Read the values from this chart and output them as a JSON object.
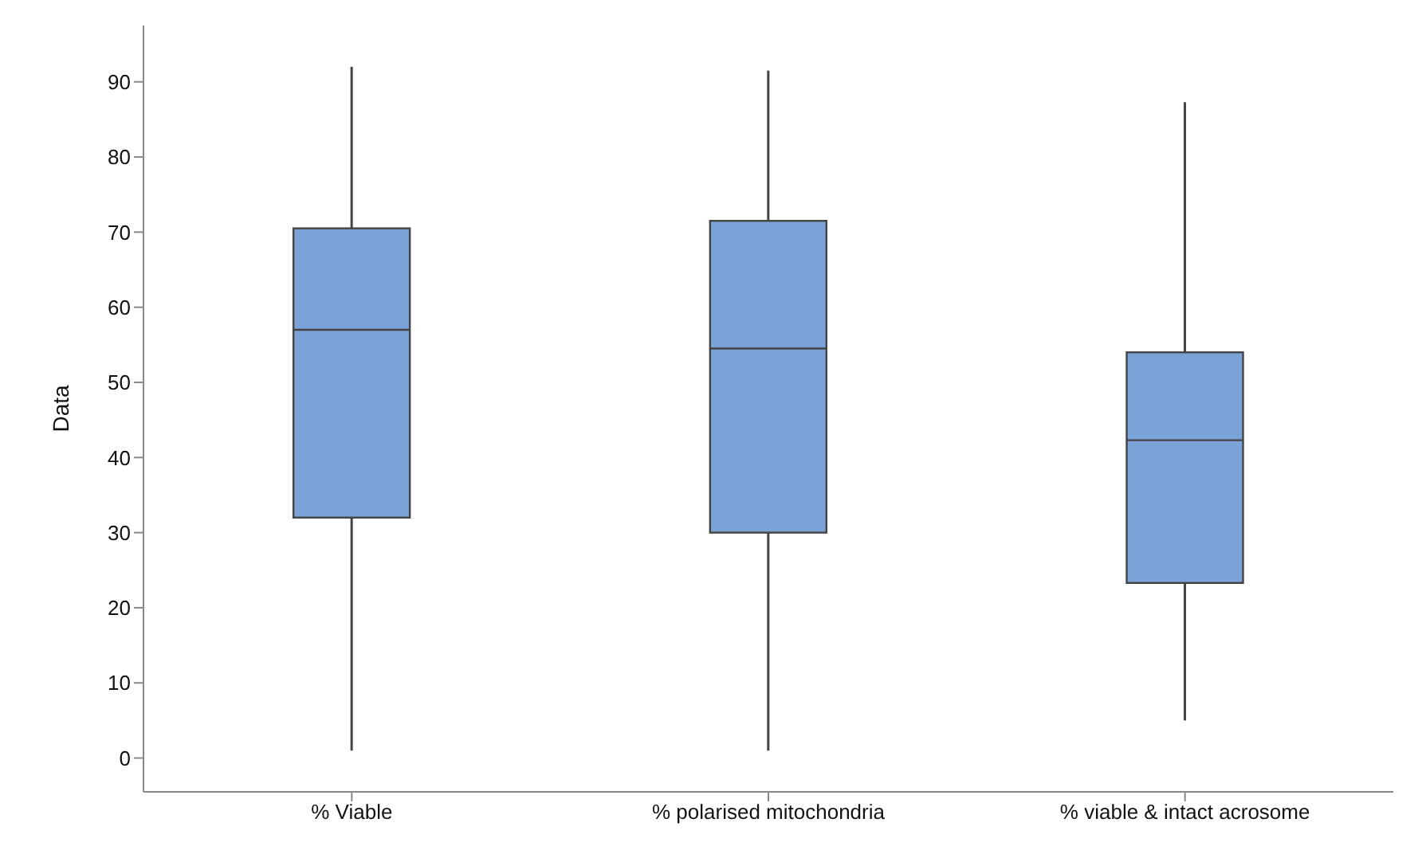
{
  "chart_data": {
    "type": "box",
    "ylabel": "Data",
    "categories": [
      "% Viable",
      "% polarised mitochondria",
      "% viable & intact acrosome"
    ],
    "color": "#7ba3d8",
    "boxes": [
      {
        "low": 1,
        "q1": 32,
        "median": 57,
        "q3": 70.5,
        "high": 92
      },
      {
        "low": 1,
        "q1": 30,
        "median": 54.5,
        "q3": 71.5,
        "high": 91.5
      },
      {
        "low": 5,
        "q1": 23.3,
        "median": 42.3,
        "q3": 54,
        "high": 87.3
      }
    ],
    "ylim": [
      -4.5,
      97.5
    ],
    "yticks": [
      0,
      10,
      20,
      30,
      40,
      50,
      60,
      70,
      80,
      90
    ]
  }
}
